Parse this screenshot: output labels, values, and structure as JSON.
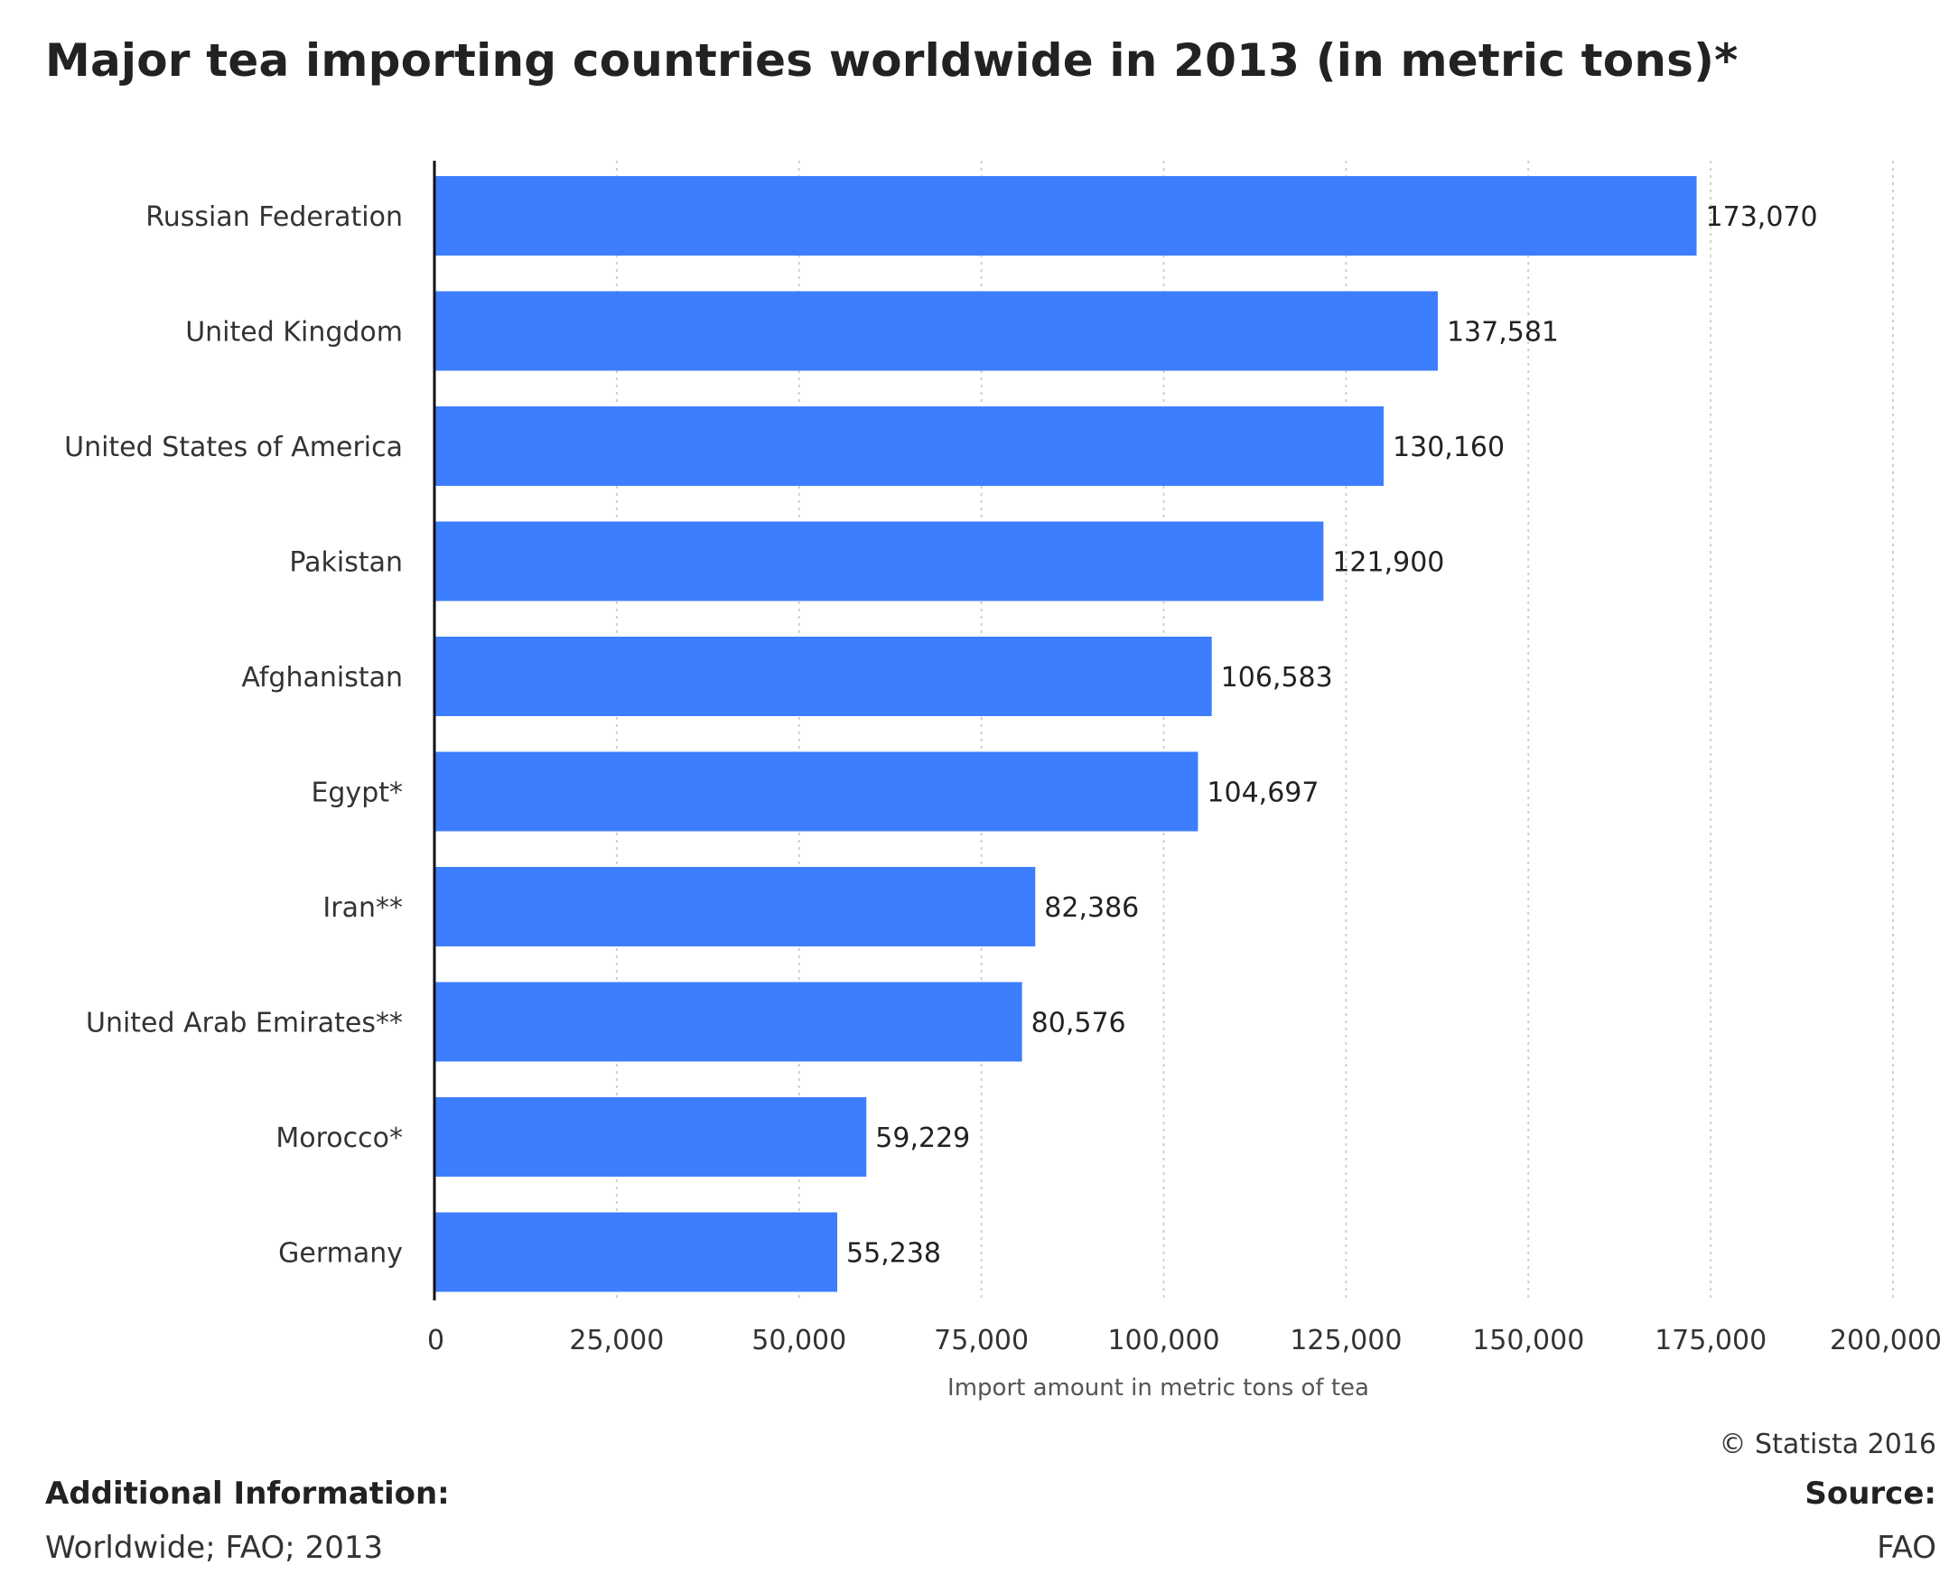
{
  "chart_data": {
    "type": "bar",
    "orientation": "horizontal",
    "title": "Major tea importing countries worldwide in 2013 (in metric tons)*",
    "categories": [
      "Russian Federation",
      "United Kingdom",
      "United States of America",
      "Pakistan",
      "Afghanistan",
      "Egypt*",
      "Iran**",
      "United Arab Emirates**",
      "Morocco*",
      "Germany"
    ],
    "values": [
      173070,
      137581,
      130160,
      121900,
      106583,
      104697,
      82386,
      80576,
      59229,
      55238
    ],
    "value_labels": [
      "173,070",
      "137,581",
      "130,160",
      "121,900",
      "106,583",
      "104,697",
      "82,386",
      "80,576",
      "59,229",
      "55,238"
    ],
    "xlabel": "Import amount in metric tons of tea",
    "ylabel": "",
    "xlim": [
      0,
      200000
    ],
    "xticks": [
      0,
      25000,
      50000,
      75000,
      100000,
      125000,
      150000,
      175000,
      200000
    ],
    "xtick_labels": [
      "0",
      "25,000",
      "50,000",
      "75,000",
      "100,000",
      "125,000",
      "150,000",
      "175,000",
      "200,000"
    ],
    "grid": "vertical dotted",
    "bar_color": "#3d7eff"
  },
  "footer": {
    "copyright": "© Statista 2016",
    "additional_info_title": "Additional Information:",
    "additional_info_text": "Worldwide; FAO; 2013",
    "source_title": "Source:",
    "source_text": "FAO"
  }
}
